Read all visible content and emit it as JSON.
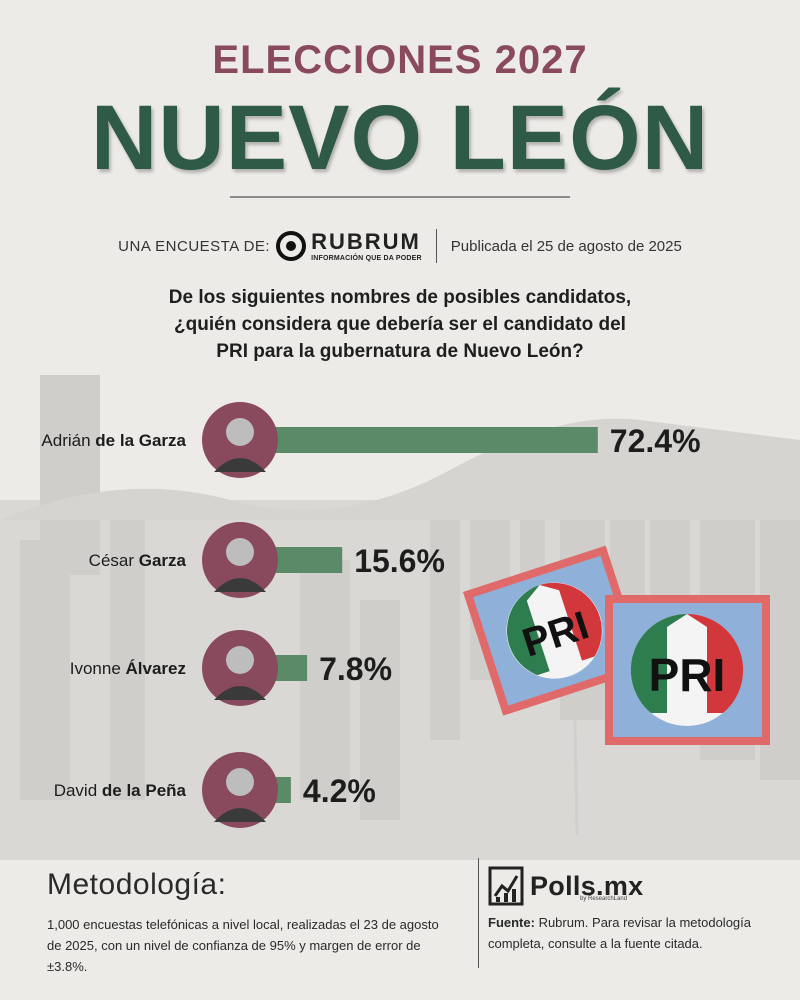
{
  "header": {
    "title_top": "ELECCIONES 2027",
    "title_main": "NUEVO LEÓN",
    "source_prefix": "UNA ENCUESTA DE:",
    "pollster_name": "RUBRUM",
    "pollster_tagline": "INFORMACIÓN QUE DA PODER",
    "published": "Publicada el 25 de agosto de 2025"
  },
  "question": {
    "line1": "De los siguientes nombres de posibles candidatos,",
    "line2": "¿quién considera que debería ser el candidato del",
    "line3": "PRI para la gubernatura de Nuevo León?"
  },
  "chart_data": {
    "type": "bar",
    "orientation": "horizontal",
    "categories": [
      "Adrián de la Garza",
      "César Garza",
      "Ivonne Álvarez",
      "David de la Peña"
    ],
    "name_first": [
      "Adrián",
      "César",
      "Ivonne",
      "David"
    ],
    "name_last": [
      "de la Garza",
      "Garza",
      "Álvarez",
      "de la Peña"
    ],
    "values": [
      72.4,
      15.6,
      7.8,
      4.2
    ],
    "value_labels": [
      "72.4%",
      "15.6%",
      "7.8%",
      "4.2%"
    ],
    "ylim": [
      0,
      100
    ],
    "grid": false,
    "bar_color": "#5a8a67",
    "photo_ring_color": "#8a4a5e"
  },
  "flags": {
    "label": "PRI",
    "colors": {
      "green": "#2e7d4f",
      "white": "#f4f4f4",
      "red": "#d2373c",
      "border": "#e06a6a",
      "field": "#8fb0d8"
    }
  },
  "footer": {
    "metodologia_title": "Metodología:",
    "metodologia_text": "1,000 encuestas telefónicas a nivel local, realizadas el 23 de agosto de 2025, con un nivel de confianza de 95% y margen de error de ±3.8%.",
    "brand": "Polls.mx",
    "brand_sub": "by ResearchLand",
    "fuente_label": "Fuente:",
    "fuente_text": " Rubrum. Para revisar la metodología completa, consulte a la fuente citada."
  },
  "colors": {
    "title_top": "#8a4a5e",
    "title_main": "#2f5a45",
    "background": "#ecebe8"
  }
}
